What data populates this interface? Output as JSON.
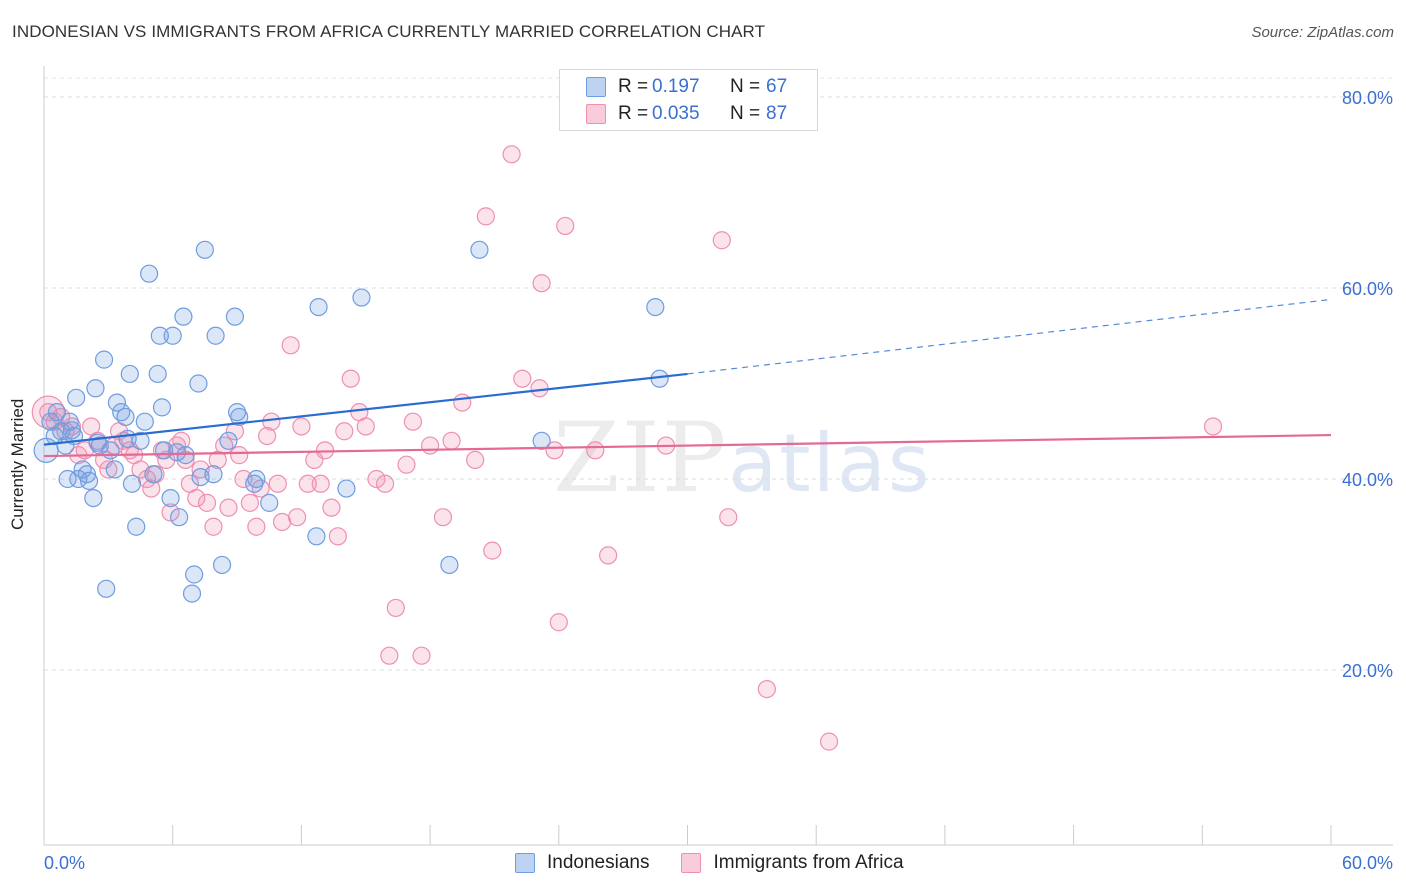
{
  "header": {
    "title": "INDONESIAN VS IMMIGRANTS FROM AFRICA CURRENTLY MARRIED CORRELATION CHART",
    "source": "Source: ZipAtlas.com"
  },
  "watermark": {
    "zip": "ZIP",
    "atlas": "atlas"
  },
  "legend": {
    "series1": {
      "r_label": "R =",
      "r_value": "0.197",
      "n_label": "N =",
      "n_value": "67"
    },
    "series2": {
      "r_label": "R =",
      "r_value": "0.035",
      "n_label": "N =",
      "n_value": "87"
    }
  },
  "bottom_legend": {
    "series1": "Indonesians",
    "series2": "Immigrants from Africa"
  },
  "chart_data": {
    "type": "scatter",
    "title": "INDONESIAN VS IMMIGRANTS FROM AFRICA CURRENTLY MARRIED CORRELATION CHART",
    "xlabel": "",
    "ylabel": "Currently Married",
    "xlim": [
      0,
      60
    ],
    "ylim": [
      0,
      83
    ],
    "x_tick_labels": [
      "0.0%",
      "60.0%"
    ],
    "y_ticks": [
      20,
      40,
      60,
      80
    ],
    "y_tick_labels": [
      "20.0%",
      "40.0%",
      "60.0%",
      "80.0%"
    ],
    "grid": "horizontal dashed",
    "colors": {
      "series1": "#6f9de0",
      "series2": "#f08fb0",
      "line1": "#2a6dd0",
      "line2": "#e26a94",
      "tick_text": "#3b6fd0"
    },
    "series": [
      {
        "name": "Indonesians",
        "r": 0.197,
        "n": 67,
        "trend": {
          "x0": 0,
          "y0": 43.6,
          "x1": 30,
          "y1": 51.0,
          "dashed_to_x": 60,
          "dashed_to_y": 58.8
        },
        "points": [
          [
            0.3,
            46
          ],
          [
            0.5,
            44.5
          ],
          [
            0.6,
            47
          ],
          [
            0.8,
            45
          ],
          [
            1.0,
            43.5
          ],
          [
            1.1,
            40
          ],
          [
            1.2,
            46
          ],
          [
            1.4,
            44.5
          ],
          [
            1.5,
            48.5
          ],
          [
            1.6,
            40
          ],
          [
            1.8,
            41
          ],
          [
            2.0,
            40.5
          ],
          [
            2.1,
            39.8
          ],
          [
            2.3,
            38
          ],
          [
            2.4,
            49.5
          ],
          [
            2.6,
            43.5
          ],
          [
            2.8,
            52.5
          ],
          [
            2.9,
            28.5
          ],
          [
            3.1,
            43
          ],
          [
            3.3,
            41
          ],
          [
            3.4,
            48
          ],
          [
            3.6,
            47
          ],
          [
            3.8,
            46.5
          ],
          [
            4.0,
            51
          ],
          [
            4.1,
            39.5
          ],
          [
            4.3,
            35
          ],
          [
            4.5,
            44
          ],
          [
            4.7,
            46
          ],
          [
            4.9,
            61.5
          ],
          [
            5.1,
            40.5
          ],
          [
            5.3,
            51
          ],
          [
            5.4,
            55
          ],
          [
            5.5,
            47.5
          ],
          [
            5.6,
            43
          ],
          [
            5.9,
            38
          ],
          [
            6.0,
            55
          ],
          [
            6.3,
            36
          ],
          [
            6.5,
            57
          ],
          [
            6.6,
            42.5
          ],
          [
            6.9,
            28
          ],
          [
            7.0,
            30
          ],
          [
            7.2,
            50
          ],
          [
            7.5,
            64
          ],
          [
            7.9,
            40.5
          ],
          [
            8.0,
            55
          ],
          [
            8.3,
            31
          ],
          [
            8.6,
            44
          ],
          [
            8.9,
            57
          ],
          [
            9.0,
            47
          ],
          [
            9.1,
            46.5
          ],
          [
            9.8,
            39.5
          ],
          [
            9.9,
            40
          ],
          [
            10.5,
            37.5
          ],
          [
            12.7,
            34
          ],
          [
            12.8,
            58
          ],
          [
            14.1,
            39
          ],
          [
            14.8,
            59
          ],
          [
            18.9,
            31
          ],
          [
            20.3,
            64
          ],
          [
            23.2,
            44
          ],
          [
            28.5,
            58
          ],
          [
            28.7,
            50.5
          ],
          [
            7.3,
            40.2
          ],
          [
            3.9,
            44.2
          ],
          [
            2.5,
            43.8
          ],
          [
            1.3,
            45.1
          ],
          [
            6.2,
            42.8
          ]
        ]
      },
      {
        "name": "Immigrants from Africa",
        "r": 0.035,
        "n": 87,
        "trend": {
          "x0": 0,
          "y0": 42.4,
          "x1": 60,
          "y1": 44.6
        },
        "points": [
          [
            0.2,
            47
          ],
          [
            0.5,
            46
          ],
          [
            0.8,
            46.5
          ],
          [
            1.0,
            45
          ],
          [
            1.3,
            45.5
          ],
          [
            1.6,
            42.5
          ],
          [
            1.9,
            43
          ],
          [
            2.2,
            45.5
          ],
          [
            2.5,
            44
          ],
          [
            2.8,
            42
          ],
          [
            3.0,
            41
          ],
          [
            3.3,
            43.5
          ],
          [
            3.5,
            45
          ],
          [
            3.7,
            44
          ],
          [
            4.0,
            43
          ],
          [
            4.2,
            42.5
          ],
          [
            4.5,
            41
          ],
          [
            4.8,
            40
          ],
          [
            5.0,
            39
          ],
          [
            5.2,
            40.5
          ],
          [
            5.5,
            43
          ],
          [
            5.7,
            42
          ],
          [
            5.9,
            36.5
          ],
          [
            6.2,
            43.5
          ],
          [
            6.4,
            44
          ],
          [
            6.6,
            42
          ],
          [
            6.8,
            39.5
          ],
          [
            7.1,
            38
          ],
          [
            7.3,
            41
          ],
          [
            7.6,
            37.5
          ],
          [
            7.9,
            35
          ],
          [
            8.1,
            42
          ],
          [
            8.4,
            43.5
          ],
          [
            8.6,
            37
          ],
          [
            8.9,
            45
          ],
          [
            9.1,
            42.5
          ],
          [
            9.3,
            40
          ],
          [
            9.6,
            37.5
          ],
          [
            9.9,
            35
          ],
          [
            10.1,
            39
          ],
          [
            10.4,
            44.5
          ],
          [
            10.6,
            46
          ],
          [
            10.9,
            39.5
          ],
          [
            11.1,
            35.5
          ],
          [
            11.5,
            54
          ],
          [
            11.8,
            36
          ],
          [
            12.0,
            45.5
          ],
          [
            12.3,
            39.5
          ],
          [
            12.6,
            42
          ],
          [
            12.9,
            39.5
          ],
          [
            13.1,
            43
          ],
          [
            13.4,
            37
          ],
          [
            13.7,
            34
          ],
          [
            14.0,
            45
          ],
          [
            14.3,
            50.5
          ],
          [
            14.7,
            47
          ],
          [
            15.0,
            45.5
          ],
          [
            15.5,
            40
          ],
          [
            15.9,
            39.5
          ],
          [
            16.1,
            21.5
          ],
          [
            16.4,
            26.5
          ],
          [
            16.9,
            41.5
          ],
          [
            17.2,
            46
          ],
          [
            17.6,
            21.5
          ],
          [
            18.0,
            43.5
          ],
          [
            18.6,
            36
          ],
          [
            19.0,
            44
          ],
          [
            19.5,
            48
          ],
          [
            20.1,
            42
          ],
          [
            20.6,
            67.5
          ],
          [
            20.9,
            32.5
          ],
          [
            21.8,
            74
          ],
          [
            22.3,
            50.5
          ],
          [
            23.1,
            49.5
          ],
          [
            23.2,
            60.5
          ],
          [
            23.8,
            43
          ],
          [
            24.0,
            25
          ],
          [
            24.3,
            66.5
          ],
          [
            25.7,
            43
          ],
          [
            26.3,
            32
          ],
          [
            29.0,
            43.5
          ],
          [
            31.6,
            65
          ],
          [
            31.9,
            36
          ],
          [
            33.6,
            79
          ],
          [
            33.7,
            18
          ],
          [
            36.6,
            12.5
          ],
          [
            54.5,
            45.5
          ]
        ]
      }
    ]
  }
}
